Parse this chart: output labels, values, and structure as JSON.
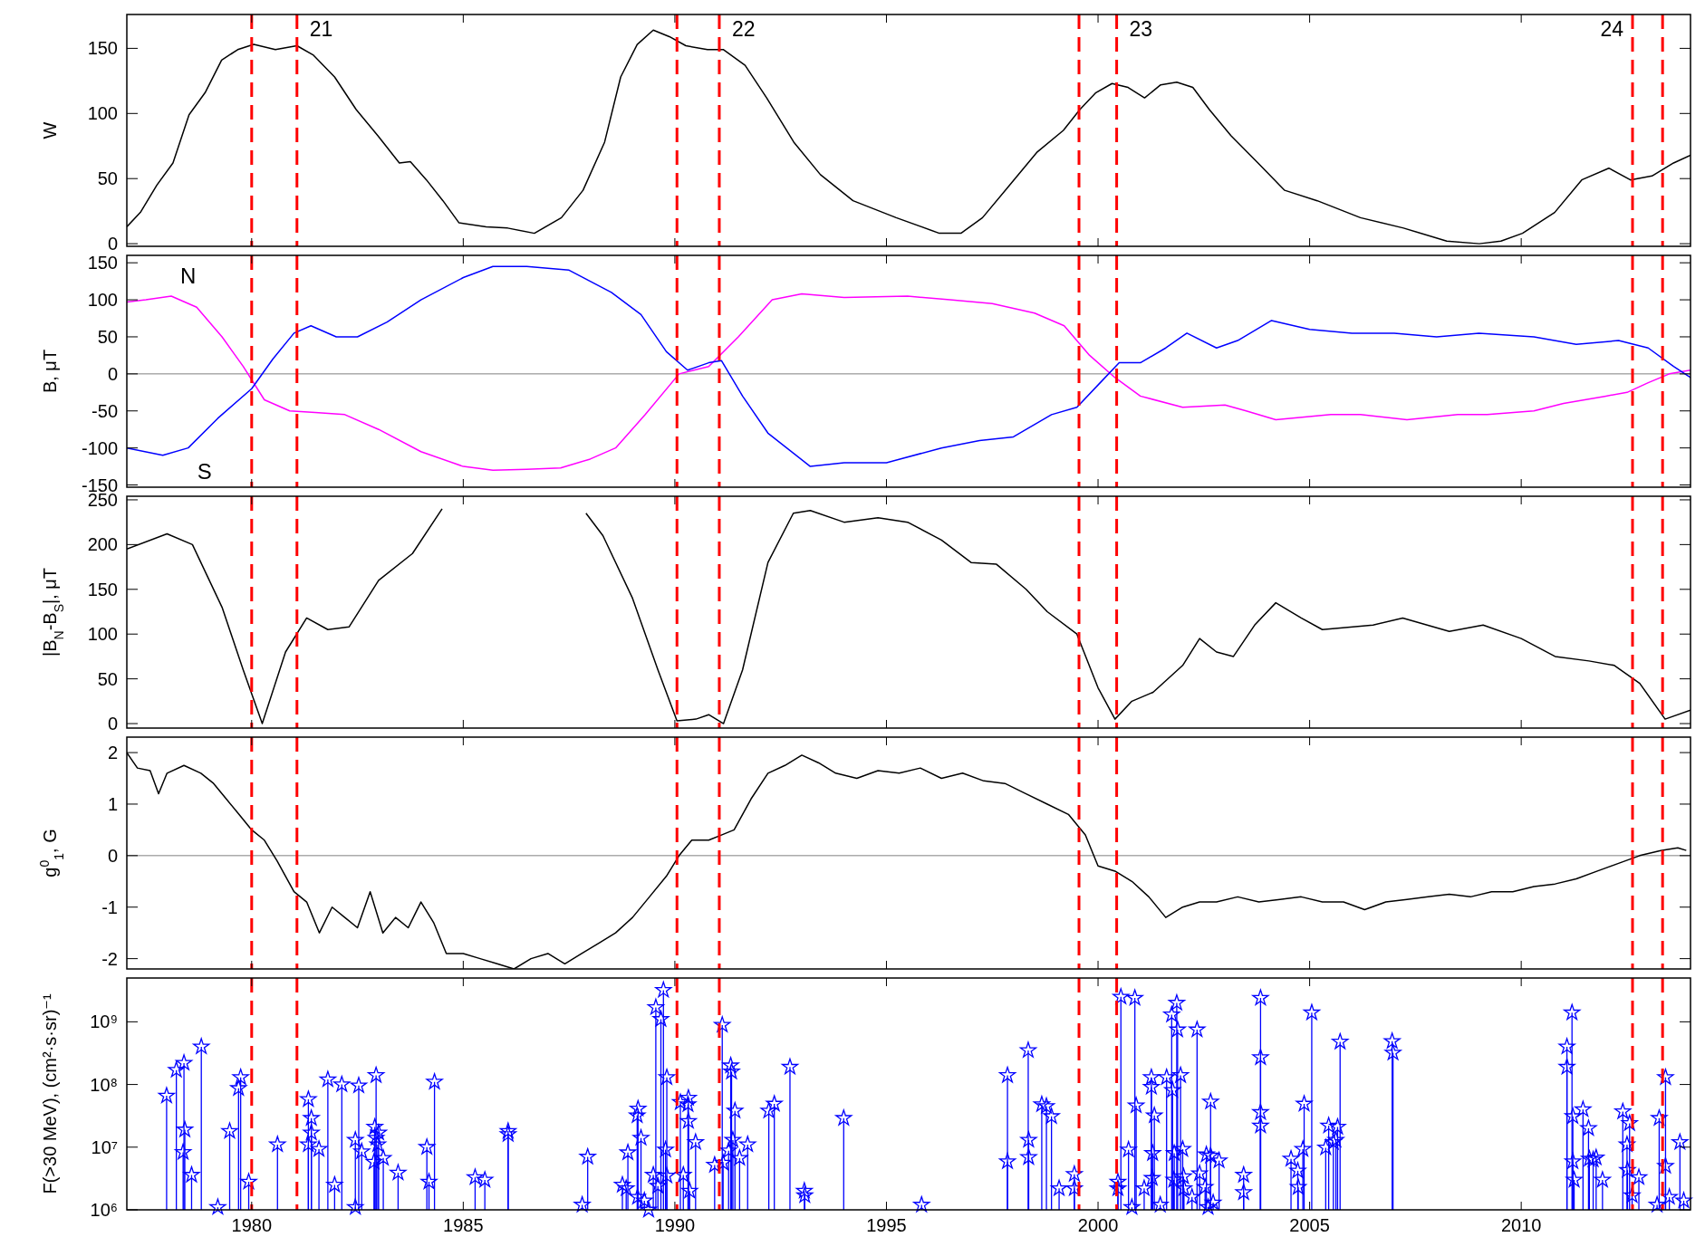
{
  "chart_data": [
    {
      "type": "line",
      "ylabel": "W",
      "xlim": [
        1977.05,
        2014.0
      ],
      "xticks": [
        1980,
        1985,
        1990,
        1995,
        2000,
        2005,
        2010
      ],
      "ylim": [
        -2,
        176
      ],
      "yticks": [
        0,
        50,
        100,
        150
      ],
      "tick_labels": "y",
      "series": [
        {
          "color": "#000000",
          "x": [
            1977.05,
            1977.37,
            1977.76,
            1978.14,
            1978.52,
            1978.9,
            1979.29,
            1979.67,
            1980.05,
            1980.56,
            1981.07,
            1981.45,
            1981.96,
            1982.47,
            1982.98,
            1983.49,
            1983.75,
            1984.13,
            1984.52,
            1984.9,
            1985.54,
            1986.05,
            1986.68,
            1987.32,
            1987.83,
            1988.34,
            1988.72,
            1989.11,
            1989.49,
            1989.87,
            1990.26,
            1990.77,
            1991.15,
            1991.66,
            1992.17,
            1992.81,
            1993.44,
            1994.21,
            1995.23,
            1996.25,
            1996.76,
            1997.27,
            1997.91,
            1998.55,
            1999.18,
            1999.57,
            1999.95,
            2000.33,
            2000.71,
            2001.1,
            2001.48,
            2001.86,
            2002.24,
            2002.63,
            2003.14,
            2003.78,
            2004.41,
            2005.18,
            2006.2,
            2007.22,
            2008.24,
            2009.01,
            2009.52,
            2010.03,
            2010.79,
            2011.43,
            2012.07,
            2012.58,
            2013.09,
            2013.6,
            2014.0
          ],
          "values": [
            13,
            24,
            45,
            62,
            99,
            116,
            141,
            149,
            153,
            149,
            152,
            145,
            128,
            103,
            83,
            62,
            63,
            49,
            33,
            16,
            13,
            12,
            8,
            20,
            41,
            78,
            128,
            153,
            164,
            159,
            152,
            149,
            149,
            137,
            112,
            78,
            53,
            33,
            20,
            8,
            8,
            20,
            45,
            70,
            87,
            103,
            116,
            123,
            120,
            112,
            122,
            124,
            120,
            103,
            83,
            62,
            41,
            33,
            20,
            12,
            2,
            0,
            2,
            8,
            24,
            49,
            58,
            49,
            52,
            62,
            68
          ]
        }
      ],
      "ref_lines": [
        {
          "axis": "x",
          "value": 1980.0,
          "color": "#ff0000",
          "line_style": "dashed"
        },
        {
          "axis": "x",
          "value": 1981.07,
          "color": "#ff0000",
          "line_style": "dashed"
        },
        {
          "axis": "x",
          "value": 1990.05,
          "color": "#ff0000",
          "line_style": "dashed"
        },
        {
          "axis": "x",
          "value": 1991.05,
          "color": "#ff0000",
          "line_style": "dashed"
        },
        {
          "axis": "x",
          "value": 1999.55,
          "color": "#ff0000",
          "line_style": "dashed"
        },
        {
          "axis": "x",
          "value": 2000.44,
          "color": "#ff0000",
          "line_style": "dashed"
        },
        {
          "axis": "x",
          "value": 2012.63,
          "color": "#ff0000",
          "line_style": "dashed"
        },
        {
          "axis": "x",
          "value": 2013.34,
          "color": "#ff0000",
          "line_style": "dashed"
        }
      ],
      "annotations": [
        "21",
        "22",
        "23",
        "24"
      ]
    },
    {
      "type": "line",
      "ylabel": "B, μT",
      "xlim": [
        1977.05,
        2014.0
      ],
      "xticks": [
        1980,
        1985,
        1990,
        1995,
        2000,
        2005,
        2010
      ],
      "ylim": [
        -153,
        160
      ],
      "yticks": [
        -150,
        -100,
        -50,
        0,
        50,
        100,
        150
      ],
      "tick_labels": "y",
      "series": [
        {
          "name": "N",
          "color": "#ff00ff",
          "x": [
            1977.05,
            1977.5,
            1978.1,
            1978.7,
            1979.3,
            1979.8,
            1980.3,
            1980.9,
            1981.5,
            1982.2,
            1983,
            1984,
            1985,
            1985.7,
            1986.5,
            1987.3,
            1988,
            1988.6,
            1989.3,
            1990.1,
            1990.8,
            1991.5,
            1992.3,
            1993,
            1994,
            1995.5,
            1996.5,
            1997.5,
            1998.5,
            1999.2,
            1999.8,
            2000.4,
            2001,
            2002,
            2003,
            2003.5,
            2004.2,
            2005.5,
            2006.2,
            2007.3,
            2008.5,
            2009.2,
            2010.3,
            2011,
            2012,
            2012.5,
            2013,
            2013.5,
            2014
          ],
          "values": [
            97,
            100,
            105,
            90,
            50,
            10,
            -35,
            -50,
            -52,
            -55,
            -75,
            -105,
            -125,
            -130,
            -129,
            -127,
            -115,
            -100,
            -55,
            0,
            10,
            50,
            100,
            108,
            103,
            105,
            100,
            95,
            82,
            65,
            25,
            -5,
            -30,
            -45,
            -42,
            -50,
            -62,
            -55,
            -55,
            -62,
            -55,
            -55,
            -50,
            -40,
            -30,
            -25,
            -12,
            0,
            5
          ]
        },
        {
          "name": "S",
          "color": "#0000ff",
          "x": [
            1977.05,
            1977.9,
            1978.5,
            1979.2,
            1980,
            1980.5,
            1981,
            1981.4,
            1982,
            1982.5,
            1983.2,
            1984,
            1985,
            1985.7,
            1986.5,
            1987.5,
            1988.5,
            1989.2,
            1989.8,
            1990.3,
            1990.8,
            1991.1,
            1991.6,
            1992.2,
            1993.2,
            1994,
            1995,
            1996.3,
            1997.2,
            1998,
            1998.9,
            1999.5,
            2000,
            2000.5,
            2001,
            2001.6,
            2002.1,
            2002.8,
            2003.3,
            2004.1,
            2005,
            2006,
            2007,
            2008,
            2009,
            2010.3,
            2011.3,
            2012.3,
            2013,
            2013.6,
            2014
          ],
          "values": [
            -100,
            -110,
            -100,
            -60,
            -20,
            20,
            55,
            65,
            50,
            50,
            70,
            100,
            130,
            145,
            145,
            140,
            110,
            80,
            30,
            5,
            15,
            18,
            -30,
            -80,
            -125,
            -120,
            -120,
            -100,
            -90,
            -85,
            -55,
            -45,
            -15,
            15,
            15,
            35,
            55,
            35,
            45,
            72,
            60,
            55,
            55,
            50,
            55,
            50,
            40,
            45,
            35,
            10,
            -5
          ]
        }
      ],
      "ref_lines": [
        {
          "axis": "y",
          "value": 0,
          "color": "#808080",
          "line_style": "solid"
        },
        {
          "axis": "x",
          "value": 1980.0,
          "color": "#ff0000",
          "line_style": "dashed"
        },
        {
          "axis": "x",
          "value": 1981.07,
          "color": "#ff0000",
          "line_style": "dashed"
        },
        {
          "axis": "x",
          "value": 1990.05,
          "color": "#ff0000",
          "line_style": "dashed"
        },
        {
          "axis": "x",
          "value": 1991.05,
          "color": "#ff0000",
          "line_style": "dashed"
        },
        {
          "axis": "x",
          "value": 1999.55,
          "color": "#ff0000",
          "line_style": "dashed"
        },
        {
          "axis": "x",
          "value": 2000.44,
          "color": "#ff0000",
          "line_style": "dashed"
        },
        {
          "axis": "x",
          "value": 2012.63,
          "color": "#ff0000",
          "line_style": "dashed"
        },
        {
          "axis": "x",
          "value": 2013.34,
          "color": "#ff0000",
          "line_style": "dashed"
        }
      ]
    },
    {
      "type": "line",
      "ylabel": "|B$_{N}$-B$_{S}$|, μT",
      "xlim": [
        1977.05,
        2014.0
      ],
      "xticks": [
        1980,
        1985,
        1990,
        1995,
        2000,
        2005,
        2010
      ],
      "ylim": [
        -5,
        254
      ],
      "yticks": [
        0,
        50,
        100,
        150,
        200,
        250
      ],
      "tick_labels": "y",
      "series": [
        {
          "color": "#000000",
          "x": [
            1977.05,
            1978,
            1978.6,
            1979.3,
            1979.8,
            1980.25,
            1980.8,
            1981.3,
            1981.8,
            1982.3,
            1983,
            1983.8,
            1984.5,
            1984.8,
            1986.2,
            1987.6,
            1987.9,
            1988.3,
            1989,
            1989.6,
            1990.05,
            1990.5,
            1990.8,
            1991.15,
            1991.6,
            1992.2,
            1992.8,
            1993.2,
            1994,
            1994.8,
            1995.5,
            1996.3,
            1997,
            1997.6,
            1998.3,
            1998.8,
            1999.5,
            2000,
            2000.4,
            2000.8,
            2001.3,
            2002,
            2002.4,
            2002.8,
            2003.2,
            2003.7,
            2004.2,
            2004.8,
            2005.3,
            2006.5,
            2007.2,
            2008.3,
            2009.1,
            2010,
            2010.8,
            2011.6,
            2012.2,
            2012.8,
            2013.4,
            2014
          ],
          "values": [
            195,
            212,
            200,
            130,
            60,
            0,
            80,
            118,
            105,
            108,
            160,
            190,
            240,
            null,
            null,
            null,
            235,
            210,
            140,
            60,
            3,
            5,
            10,
            0,
            60,
            180,
            235,
            238,
            225,
            230,
            225,
            205,
            180,
            178,
            150,
            125,
            100,
            40,
            5,
            25,
            35,
            65,
            95,
            80,
            75,
            110,
            135,
            118,
            105,
            110,
            118,
            103,
            110,
            95,
            75,
            70,
            65,
            45,
            5,
            15
          ]
        }
      ],
      "ref_lines": [
        {
          "axis": "x",
          "value": 1980.0,
          "color": "#ff0000",
          "line_style": "dashed"
        },
        {
          "axis": "x",
          "value": 1981.07,
          "color": "#ff0000",
          "line_style": "dashed"
        },
        {
          "axis": "x",
          "value": 1990.05,
          "color": "#ff0000",
          "line_style": "dashed"
        },
        {
          "axis": "x",
          "value": 1991.05,
          "color": "#ff0000",
          "line_style": "dashed"
        },
        {
          "axis": "x",
          "value": 1999.55,
          "color": "#ff0000",
          "line_style": "dashed"
        },
        {
          "axis": "x",
          "value": 2000.44,
          "color": "#ff0000",
          "line_style": "dashed"
        },
        {
          "axis": "x",
          "value": 2012.63,
          "color": "#ff0000",
          "line_style": "dashed"
        },
        {
          "axis": "x",
          "value": 2013.34,
          "color": "#ff0000",
          "line_style": "dashed"
        }
      ]
    },
    {
      "type": "line",
      "ylabel": "g$^{0}$$_{1}$, G",
      "xlim": [
        1977.05,
        2014.0
      ],
      "xticks": [
        1980,
        1985,
        1990,
        1995,
        2000,
        2005,
        2010
      ],
      "ylim": [
        -2.2,
        2.3
      ],
      "yticks": [
        -2,
        -1,
        0,
        1,
        2
      ],
      "tick_labels": "y",
      "series": [
        {
          "color": "#000000",
          "x": [
            1977.05,
            1977.3,
            1977.6,
            1977.8,
            1978.0,
            1978.4,
            1978.8,
            1979.1,
            1979.4,
            1979.7,
            1980.0,
            1980.3,
            1980.6,
            1981.0,
            1981.3,
            1981.6,
            1981.9,
            1982.2,
            1982.5,
            1982.8,
            1983.1,
            1983.4,
            1983.7,
            1984.0,
            1984.3,
            1984.6,
            1985.0,
            1985.4,
            1985.8,
            1986.2,
            1986.6,
            1987.0,
            1987.4,
            1987.8,
            1988.2,
            1988.6,
            1989.0,
            1989.4,
            1989.8,
            1990.1,
            1990.4,
            1990.8,
            1991.1,
            1991.4,
            1991.8,
            1992.2,
            1992.6,
            1993.0,
            1993.4,
            1993.8,
            1994.3,
            1994.8,
            1995.3,
            1995.8,
            1996.3,
            1996.8,
            1997.3,
            1997.8,
            1998.3,
            1998.8,
            1999.3,
            1999.7,
            2000.0,
            2000.4,
            2000.8,
            2001.2,
            2001.6,
            2002.0,
            2002.4,
            2002.8,
            2003.3,
            2003.8,
            2004.3,
            2004.8,
            2005.3,
            2005.8,
            2006.3,
            2006.8,
            2007.3,
            2007.8,
            2008.3,
            2008.8,
            2009.3,
            2009.8,
            2010.3,
            2010.8,
            2011.3,
            2011.8,
            2012.3,
            2012.8,
            2013.3,
            2013.7,
            2013.9
          ],
          "values": [
            2.0,
            1.7,
            1.65,
            1.2,
            1.6,
            1.75,
            1.6,
            1.4,
            1.1,
            0.8,
            0.5,
            0.3,
            -0.1,
            -0.7,
            -0.9,
            -1.5,
            -1.0,
            -1.2,
            -1.4,
            -0.7,
            -1.5,
            -1.2,
            -1.4,
            -0.9,
            -1.3,
            -1.9,
            -1.9,
            -2.0,
            -2.1,
            -2.2,
            -2.0,
            -1.9,
            -2.1,
            -1.9,
            -1.7,
            -1.5,
            -1.2,
            -0.8,
            -0.4,
            0.0,
            0.3,
            0.3,
            0.4,
            0.5,
            1.1,
            1.6,
            1.75,
            1.95,
            1.8,
            1.6,
            1.5,
            1.65,
            1.6,
            1.7,
            1.5,
            1.6,
            1.45,
            1.4,
            1.2,
            1.0,
            0.8,
            0.4,
            -0.2,
            -0.3,
            -0.5,
            -0.8,
            -1.2,
            -1.0,
            -0.9,
            -0.9,
            -0.8,
            -0.9,
            -0.85,
            -0.8,
            -0.9,
            -0.9,
            -1.05,
            -0.9,
            -0.85,
            -0.8,
            -0.75,
            -0.8,
            -0.7,
            -0.7,
            -0.6,
            -0.55,
            -0.45,
            -0.3,
            -0.15,
            0.0,
            0.1,
            0.15,
            0.1
          ]
        }
      ],
      "ref_lines": [
        {
          "axis": "y",
          "value": 0,
          "color": "#808080",
          "line_style": "solid"
        },
        {
          "axis": "x",
          "value": 1980.0,
          "color": "#ff0000",
          "line_style": "dashed"
        },
        {
          "axis": "x",
          "value": 1981.07,
          "color": "#ff0000",
          "line_style": "dashed"
        },
        {
          "axis": "x",
          "value": 1990.05,
          "color": "#ff0000",
          "line_style": "dashed"
        },
        {
          "axis": "x",
          "value": 1991.05,
          "color": "#ff0000",
          "line_style": "dashed"
        },
        {
          "axis": "x",
          "value": 1999.55,
          "color": "#ff0000",
          "line_style": "dashed"
        },
        {
          "axis": "x",
          "value": 2000.44,
          "color": "#ff0000",
          "line_style": "dashed"
        },
        {
          "axis": "x",
          "value": 2012.63,
          "color": "#ff0000",
          "line_style": "dashed"
        },
        {
          "axis": "x",
          "value": 2013.34,
          "color": "#ff0000",
          "line_style": "dashed"
        }
      ]
    },
    {
      "type": "lollipop",
      "ylabel": "F(>30 MeV), (cm²·s·sr)⁻¹",
      "xlim": [
        1977.05,
        2014.0
      ],
      "xticks": [
        1980,
        1985,
        1990,
        1995,
        2000,
        2005,
        2010
      ],
      "ylim": [
        1000000,
        5000000000
      ],
      "yticks": [
        {
          "value": 1000000,
          "label": "10⁶"
        },
        {
          "value": 10000000,
          "label": "10⁷"
        },
        {
          "value": 100000000,
          "label": "10⁸"
        },
        {
          "value": 1000000000,
          "label": "10⁹"
        }
      ],
      "log": "y",
      "marker": "star",
      "color": "#0000ff",
      "x": [
        1977.99,
        1978.22,
        1978.38,
        1978.4,
        1978.42,
        1978.58,
        1978.81,
        1979.2,
        1979.48,
        1979.69,
        1979.74,
        1979.93,
        1980.61,
        1981.34,
        1981.34,
        1981.41,
        1981.41,
        1981.59,
        1981.8,
        1981.96,
        1982.13,
        1982.45,
        1982.45,
        1982.53,
        1982.6,
        1982.91,
        1982.94,
        1982.94,
        1982.98,
        1983.0,
        1982.89,
        1983.11,
        1983.46,
        1984.14,
        1984.19,
        1984.32,
        1985.28,
        1985.51,
        1986.06,
        1986.06,
        1987.81,
        1987.94,
        1988.76,
        1988.85,
        1988.89,
        1989.11,
        1989.13,
        1989.2,
        1989.12,
        1989.28,
        1989.38,
        1989.49,
        1989.55,
        1989.6,
        1989.67,
        1989.73,
        1989.78,
        1989.81,
        1989.81,
        1990.13,
        1990.2,
        1990.32,
        1990.31,
        1990.32,
        1990.35,
        1990.49,
        1990.94,
        1991.12,
        1991.14,
        1991.27,
        1991.32,
        1991.34,
        1991.37,
        1991.42,
        1991.53,
        1991.72,
        1992.22,
        1992.35,
        1992.72,
        1993.06,
        1993.07,
        1993.99,
        1995.83,
        1997.86,
        1997.86,
        1998.35,
        1998.36,
        1998.36,
        1998.67,
        1998.78,
        1998.9,
        1999.08,
        1999.44,
        1999.44,
        2000.47,
        2000.47,
        2000.54,
        2000.72,
        2000.8,
        2000.87,
        2000.9,
        2001.09,
        2001.26,
        2001.26,
        2001.28,
        2001.29,
        2001.33,
        2001.47,
        2001.62,
        2001.74,
        2001.76,
        2001.79,
        2001.8,
        2001.86,
        2001.88,
        2001.95,
        2002.0,
        2002.02,
        2002.03,
        2002.22,
        2002.34,
        2002.4,
        2002.53,
        2002.56,
        2002.6,
        2002.66,
        2002.66,
        2002.72,
        2002.86,
        2003.44,
        2003.44,
        2003.84,
        2003.84,
        2003.84,
        2003.84,
        2004.56,
        2004.72,
        2004.73,
        2004.84,
        2004.87,
        2005.05,
        2005.38,
        2005.45,
        2005.56,
        2005.62,
        2005.66,
        2005.72,
        2006.95,
        2006.97,
        2011.08,
        2011.08,
        2011.2,
        2011.22,
        2011.22,
        2011.25,
        2011.46,
        2011.59,
        2011.61,
        2011.7,
        2011.77,
        2011.92,
        2012.4,
        2012.5,
        2012.51,
        2012.56,
        2012.62,
        2012.78,
        2013.21,
        2013.26,
        2013.41,
        2013.41,
        2013.5,
        2013.75,
        2013.84
      ],
      "values": [
        66000000.0,
        170000000.0,
        8300000.0,
        220000000.0,
        19000000.0,
        3600000.0,
        400000000.0,
        1100000.0,
        18000000.0,
        87000000.0,
        130000000.0,
        2800000.0,
        11000000.0,
        58000000.0,
        11000000.0,
        29000000.0,
        17000000.0,
        9300000.0,
        120000000.0,
        2500000.0,
        100000000.0,
        13000000.0,
        1100000.0,
        96000000.0,
        8500000.0,
        21000000.0,
        140000000.0,
        14000000.0,
        11000000.0,
        17000000.0,
        5800000.0,
        6700000.0,
        3900000.0,
        10000000.0,
        2800000.0,
        110000000.0,
        3300000.0,
        3000000.0,
        18000000.0,
        16000000.0,
        1200000.0,
        7000000.0,
        2500000.0,
        2200000.0,
        8200000.0,
        32000000.0,
        41000000.0,
        14000000.0,
        1600000.0,
        1400000.0,
        1000000.0,
        3600000.0,
        1700000000.0,
        2400000.0,
        1100000000.0,
        3200000000.0,
        9100000.0,
        130000000.0,
        3500000.0,
        52000000.0,
        3600000.0,
        61000000.0,
        48000000.0,
        26000000.0,
        2000000.0,
        12000000.0,
        5200000.0,
        890000000.0,
        5600000.0,
        8800000.0,
        200000000.0,
        160000000.0,
        13000000.0,
        38000000.0,
        6700000.0,
        11000000.0,
        38000000.0,
        49000000.0,
        190000000.0,
        2000000.0,
        1700000.0,
        29000000.0,
        1200000.0,
        140000000.0,
        5900000.0,
        350000000.0,
        13000000.0,
        6900000.0,
        48000000.0,
        45000000.0,
        31000000.0,
        2200000.0,
        3700000.0,
        2200000.0,
        2800000.0,
        2200000.0,
        2500000000.0,
        9100000.0,
        1100000.0,
        2400000000.0,
        46000000.0,
        2200000.0,
        130000000.0,
        91000000.0,
        3200000.0,
        8000000.0,
        32000000.0,
        1200000.0,
        130000000.0,
        1300000000.0,
        81000000.0,
        3000000.0,
        8000000.0,
        2000000000.0,
        750000000.0,
        140000000.0,
        9300000.0,
        3400000.0,
        2200000.0,
        1600000.0,
        750000000.0,
        3800000.0,
        2300000.0,
        7600000.0,
        1100000.0,
        53000000.0,
        7300000.0,
        1300000.0,
        6100000.0,
        3600000.0,
        1900000.0,
        2400000000.0,
        270000000.0,
        36000000.0,
        22000000.0,
        6500000.0,
        4200000.0,
        2300000.0,
        9300000.0,
        49000000.0,
        1400000000.0,
        9800000.0,
        22000000.0,
        12000000.0,
        13000000.0,
        21000000.0,
        480000000.0,
        490000000.0,
        320000000.0,
        400000000.0,
        190000000.0,
        1400000000.0,
        31000000.0,
        5900000.0,
        3000000.0,
        40000000.0,
        20000000.0,
        6500000.0,
        6300000.0,
        6800000.0,
        3000000.0,
        37000000.0,
        11000000.0,
        4300000.0,
        24000000.0,
        1700000.0,
        3300000.0,
        1200000.0,
        29000000.0,
        130000000.0,
        5000000.0,
        1600000.0,
        12000000.0,
        1400000.0
      ],
      "ref_lines": [
        {
          "axis": "x",
          "value": 1980.0,
          "color": "#ff0000",
          "line_style": "dashed"
        },
        {
          "axis": "x",
          "value": 1981.07,
          "color": "#ff0000",
          "line_style": "dashed"
        },
        {
          "axis": "x",
          "value": 1990.05,
          "color": "#ff0000",
          "line_style": "dashed"
        },
        {
          "axis": "x",
          "value": 1991.05,
          "color": "#ff0000",
          "line_style": "dashed"
        },
        {
          "axis": "x",
          "value": 1999.55,
          "color": "#ff0000",
          "line_style": "dashed"
        },
        {
          "axis": "x",
          "value": 2000.44,
          "color": "#ff0000",
          "line_style": "dashed"
        },
        {
          "axis": "x",
          "value": 2012.63,
          "color": "#ff0000",
          "line_style": "dashed"
        },
        {
          "axis": "x",
          "value": 2013.34,
          "color": "#ff0000",
          "line_style": "dashed"
        }
      ]
    }
  ]
}
